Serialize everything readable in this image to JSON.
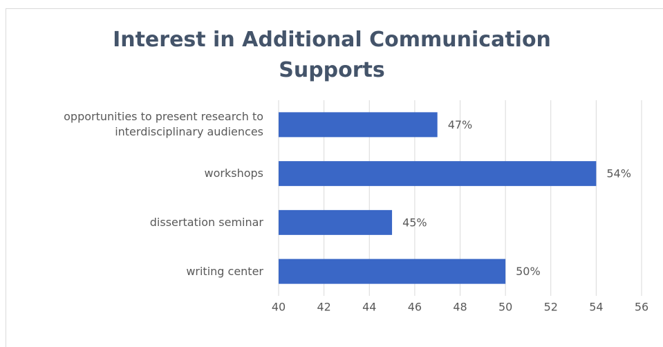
{
  "chart_data": {
    "type": "bar",
    "orientation": "horizontal",
    "title": "Interest in Additional Communication Supports",
    "categories": [
      "opportunities to present research to interdisciplinary audiences",
      "workshops",
      "dissertation seminar",
      "writing center"
    ],
    "values": [
      47,
      54,
      45,
      50
    ],
    "value_labels": [
      "47%",
      "54%",
      "45%",
      "50%"
    ],
    "color": "#3a67c6",
    "xlim": [
      40,
      56
    ],
    "xticks": [
      40,
      42,
      44,
      46,
      48,
      50,
      52,
      54,
      56
    ],
    "grid": true
  }
}
